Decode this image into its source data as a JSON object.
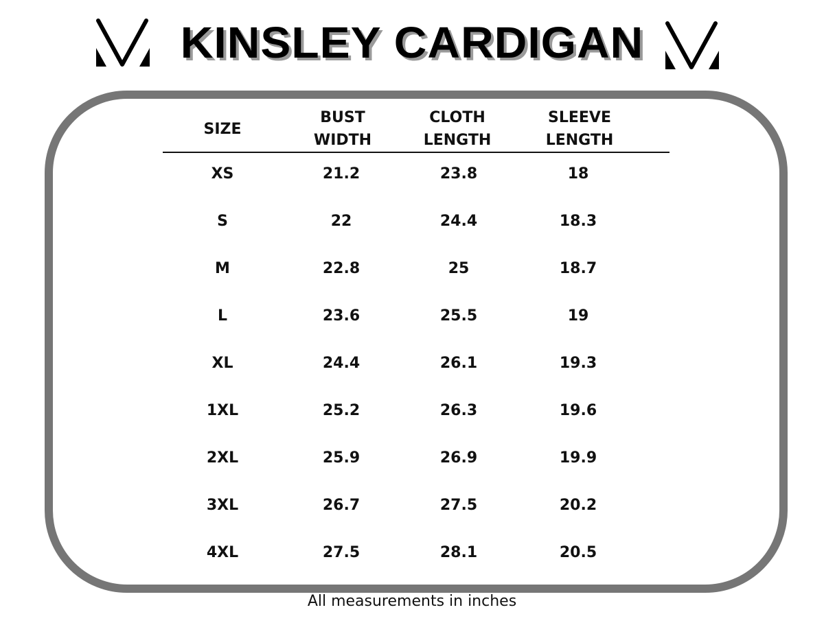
{
  "title": "KINSLEY CARDIGAN",
  "logo": {
    "icon": "v-monogram-logo",
    "color": "#000000"
  },
  "frame_color": "#767676",
  "table": {
    "headers": [
      {
        "line1": "SIZE",
        "line2": ""
      },
      {
        "line1": "BUST",
        "line2": "WIDTH"
      },
      {
        "line1": "CLOTH",
        "line2": "LENGTH"
      },
      {
        "line1": "SLEEVE",
        "line2": "LENGTH"
      }
    ],
    "rows": [
      [
        "XS",
        "21.2",
        "23.8",
        "18"
      ],
      [
        "S",
        "22",
        "24.4",
        "18.3"
      ],
      [
        "M",
        "22.8",
        "25",
        "18.7"
      ],
      [
        "L",
        "23.6",
        "25.5",
        "19"
      ],
      [
        "XL",
        "24.4",
        "26.1",
        "19.3"
      ],
      [
        "1XL",
        "25.2",
        "26.3",
        "19.6"
      ],
      [
        "2XL",
        "25.9",
        "26.9",
        "19.9"
      ],
      [
        "3XL",
        "26.7",
        "27.5",
        "20.2"
      ],
      [
        "4XL",
        "27.5",
        "28.1",
        "20.5"
      ]
    ]
  },
  "footer": "All measurements in inches"
}
